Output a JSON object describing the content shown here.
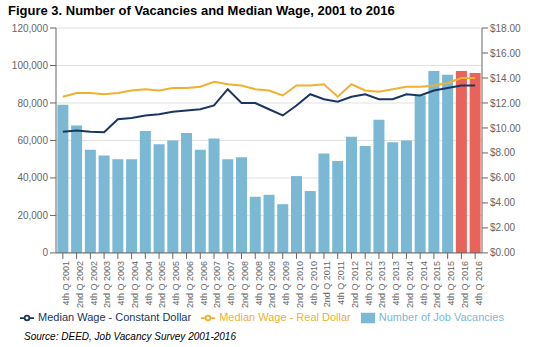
{
  "chart_data": {
    "type": "bar",
    "title": "Figure 3. Number of Vacancies and Median Wage, 2001 to 2016",
    "annotations": [
      "Source: DEED, Job Vacancy Survey 2001-2016"
    ],
    "categories": [
      "4th Q 2001",
      "2nd Q 2002",
      "4th Q 2002",
      "2nd Q 2003",
      "4th Q 2003",
      "2nd Q 2004",
      "4th Q 2004",
      "2nd Q 2005",
      "4th Q 2005",
      "2nd Q 2006",
      "4th Q 2006",
      "2nd Q 2007",
      "4th Q 2007",
      "2nd Q 2008",
      "4th Q 2008",
      "2nd Q 2009",
      "4th Q 2009",
      "2nd Q 2010",
      "4th Q 2010",
      "2nd Q 2011",
      "4th Q 2011",
      "2nd Q 2012",
      "4th Q 2012",
      "2nd Q 2013",
      "4th Q 2013",
      "2nd Q 2014",
      "4th Q 2014",
      "2nd Q 2015",
      "4th Q 2015",
      "2nd Q 2016",
      "4th Q 2016"
    ],
    "series": [
      {
        "name": "Number of Job Vacancies",
        "type": "bar",
        "color": "#7ab8d4",
        "colors": [
          "#7ab8d4",
          "#7ab8d4",
          "#7ab8d4",
          "#7ab8d4",
          "#7ab8d4",
          "#7ab8d4",
          "#7ab8d4",
          "#7ab8d4",
          "#7ab8d4",
          "#7ab8d4",
          "#7ab8d4",
          "#7ab8d4",
          "#7ab8d4",
          "#7ab8d4",
          "#7ab8d4",
          "#7ab8d4",
          "#7ab8d4",
          "#7ab8d4",
          "#7ab8d4",
          "#7ab8d4",
          "#7ab8d4",
          "#7ab8d4",
          "#7ab8d4",
          "#7ab8d4",
          "#7ab8d4",
          "#7ab8d4",
          "#7ab8d4",
          "#7ab8d4",
          "#7ab8d4",
          "#e8635a",
          "#e8635a"
        ],
        "values": [
          79000,
          68000,
          55000,
          52000,
          50000,
          50000,
          65000,
          58000,
          60000,
          64000,
          55000,
          61000,
          50000,
          51000,
          30000,
          31000,
          26000,
          41000,
          33000,
          53000,
          49000,
          62000,
          57000,
          71000,
          59000,
          60000,
          84000,
          97000,
          95000,
          97000,
          96000
        ]
      },
      {
        "name": "Median Wage - Real Dollar",
        "type": "line",
        "axis": "y2",
        "color": "#f0b030",
        "values": [
          12.5,
          12.8,
          12.8,
          12.7,
          12.8,
          13.0,
          13.1,
          13.0,
          13.2,
          13.2,
          13.3,
          13.7,
          13.5,
          13.4,
          13.1,
          13.0,
          12.6,
          13.4,
          13.4,
          13.5,
          12.5,
          13.5,
          13.0,
          12.9,
          13.1,
          13.3,
          13.3,
          13.4,
          13.6,
          14.0,
          14.0
        ]
      },
      {
        "name": "Median Wage - Constant Dollar",
        "type": "line",
        "axis": "y2",
        "color": "#1a3660",
        "values": [
          9.7,
          9.8,
          9.7,
          9.65,
          10.7,
          10.8,
          11.0,
          11.1,
          11.3,
          11.4,
          11.5,
          11.8,
          13.1,
          12.0,
          12.0,
          11.5,
          11.0,
          11.8,
          12.7,
          12.3,
          12.1,
          12.5,
          12.7,
          12.3,
          12.3,
          12.7,
          12.6,
          13.0,
          13.2,
          13.4,
          13.4
        ]
      }
    ],
    "ylim": [
      0,
      120000
    ],
    "yticks": [
      0,
      {
        "value": 20000,
        "label": "20,000"
      },
      {
        "value": 40000,
        "label": "40,000"
      },
      {
        "value": 60000,
        "label": "60,000"
      },
      {
        "value": 80000,
        "label": "80,000"
      },
      {
        "value": 100000,
        "label": "100,000"
      },
      {
        "value": 120000,
        "label": "120,000"
      }
    ],
    "y2lim": [
      0,
      18.0
    ],
    "y2ticks": [
      {
        "value": 0.0,
        "label": "$0.00"
      },
      {
        "value": 2.0,
        "label": "$2.00"
      },
      {
        "value": 4.0,
        "label": "$4.00"
      },
      {
        "value": 6.0,
        "label": "$6.00"
      },
      {
        "value": 8.0,
        "label": "$8.00"
      },
      {
        "value": 10.0,
        "label": "$10.00"
      },
      {
        "value": 12.0,
        "label": "$12.00"
      },
      {
        "value": 14.0,
        "label": "$14.00"
      },
      {
        "value": 16.0,
        "label": "$16.00"
      },
      {
        "value": 18.0,
        "label": "$18.00"
      }
    ],
    "grid": true,
    "legend": "bottom"
  }
}
